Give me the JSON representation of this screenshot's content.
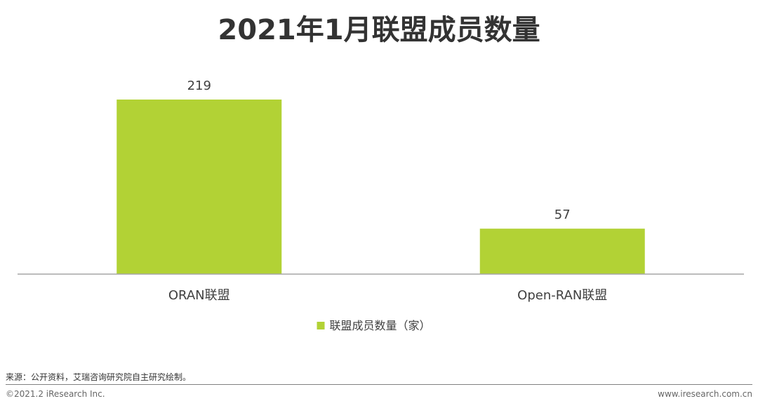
{
  "title": "2021年1月联盟成员数量",
  "colors": {
    "bar": "#b2d235",
    "axis": "#a6a6a6",
    "text": "#404040"
  },
  "chart_data": {
    "type": "bar",
    "categories": [
      "ORAN联盟",
      "Open-RAN联盟"
    ],
    "series": [
      {
        "name": "联盟成员数量（家）",
        "values": [
          219,
          57
        ]
      }
    ],
    "title": "2021年1月联盟成员数量",
    "xlabel": "",
    "ylabel": "",
    "ylim": [
      0,
      235
    ],
    "grid": false,
    "legend_position": "bottom",
    "data_labels": true
  },
  "footer": {
    "source": "来源：公开资料，艾瑞咨询研究院自主研究绘制。",
    "copyright": "©2021.2 iResearch Inc.",
    "site": "www.iresearch.com.cn"
  }
}
